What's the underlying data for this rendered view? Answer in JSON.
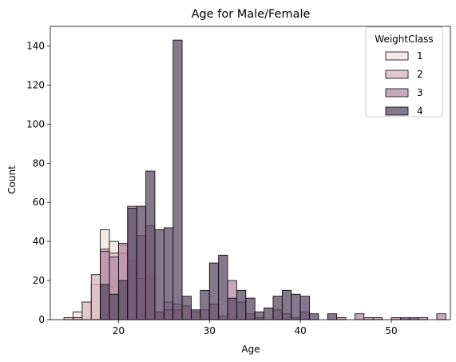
{
  "chart_data": {
    "type": "histogram",
    "title": "Age for Male/Female",
    "xlabel": "Age",
    "ylabel": "Count",
    "xlim": [
      12.5,
      56.5
    ],
    "ylim": [
      0,
      150
    ],
    "xticks": [
      20,
      30,
      40,
      50
    ],
    "yticks": [
      0,
      20,
      40,
      60,
      80,
      100,
      120,
      140
    ],
    "bin_width": 1,
    "bins_left": [
      14,
      15,
      16,
      17,
      18,
      19,
      20,
      21,
      22,
      23,
      24,
      25,
      26,
      27,
      28,
      29,
      30,
      31,
      32,
      33,
      34,
      35,
      36,
      37,
      38,
      39,
      40,
      41,
      42,
      43,
      44,
      45,
      46,
      47,
      48,
      49,
      50,
      51,
      52,
      53,
      54,
      55
    ],
    "legend": {
      "title": "WeightClass",
      "position": "upper right"
    },
    "series": [
      {
        "name": "1",
        "color": "#f3e3e0",
        "values": [
          0,
          4,
          0,
          18,
          46,
          40,
          38,
          0,
          15,
          0,
          0,
          0,
          0,
          0,
          0,
          0,
          0,
          0,
          0,
          0,
          0,
          0,
          0,
          0,
          0,
          0,
          0,
          0,
          0,
          0,
          0,
          0,
          0,
          0,
          0,
          0,
          0,
          0,
          0,
          0,
          0,
          0
        ]
      },
      {
        "name": "2",
        "color": "#d9b4be",
        "values": [
          1,
          1,
          9,
          23,
          36,
          34,
          34,
          30,
          21,
          22,
          3,
          9,
          8,
          0,
          0,
          0,
          0,
          0,
          0,
          0,
          0,
          0,
          0,
          0,
          0,
          0,
          0,
          0,
          0,
          0,
          0,
          0,
          0,
          0,
          0,
          0,
          0,
          0,
          0,
          0,
          0,
          0
        ]
      },
      {
        "name": "3",
        "color": "#b58ba4",
        "values": [
          0,
          0,
          0,
          0,
          35,
          32,
          39,
          58,
          43,
          48,
          4,
          5,
          5,
          7,
          4,
          5,
          8,
          2,
          20,
          9,
          3,
          1,
          0,
          5,
          3,
          1,
          4,
          0,
          0,
          0,
          1,
          0,
          3,
          1,
          1,
          0,
          1,
          0,
          0,
          1,
          0,
          3
        ]
      },
      {
        "name": "4",
        "color": "#5c4a66",
        "values": [
          0,
          0,
          0,
          0,
          18,
          13,
          20,
          57,
          58,
          76,
          46,
          47,
          143,
          12,
          5,
          15,
          29,
          33,
          11,
          15,
          11,
          4,
          6,
          12,
          15,
          13,
          12,
          3,
          0,
          3,
          0,
          0,
          0,
          0,
          0,
          0,
          0,
          1,
          1,
          0,
          0,
          0
        ]
      }
    ]
  }
}
